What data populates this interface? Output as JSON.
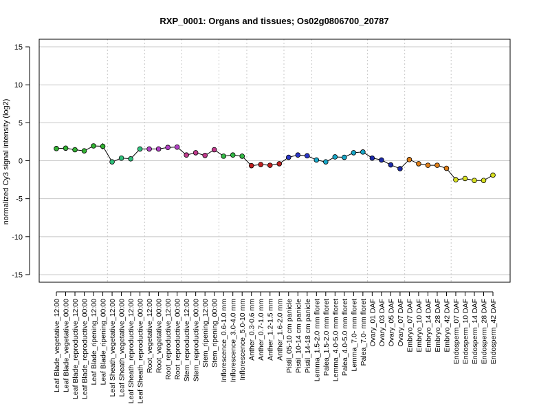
{
  "chart_data": {
    "type": "line",
    "title": "RXP_0001: Organs and tissues; Os02g0806700_20787",
    "xlabel": "",
    "ylabel": "normalized Cy3 signal intensity (log2)",
    "ylim": [
      -16,
      16
    ],
    "yticks": [
      -15,
      -10,
      -5,
      0,
      5,
      10,
      15
    ],
    "grid": true,
    "categories": [
      "Leaf Blade_vegetative_12:00",
      "Leaf Blade_vegetative_00:00",
      "Leaf Blade_reproductive_12:00",
      "Leaf Blade_reproductive_00:00",
      "Leaf Blade_ripening_12:00",
      "Leaf Blade_ripening_00:00",
      "Leaf Sheath_vegetative_12:00",
      "Leaf Sheath_vegetative_00:00",
      "Leaf Sheath_reproductive_12:00",
      "Leaf Sheath_reproductive_00:00",
      "Root_vegetative_12:00",
      "Root_vegetative_00:00",
      "Root_reproductive_12:00",
      "Root_reproductive_00:00",
      "Stem_reproductive_12:00",
      "Stem_reproductive_00:00",
      "Stem_ripening_12:00",
      "Stem_ripening_00:00",
      "Inflorescence_0.6-1.0 mm",
      "Inflorescence_3.0-4.0 mm",
      "Inflorescence_5.0-10 mm",
      "Anther_0.3-0.6 mm",
      "Anther_0.7-1.0 mm",
      "Anther_1.2-1.5 mm",
      "Anther_1.6-2.0 mm",
      "Pistil_05-10 cm panicle",
      "Pistil_10-14 cm panicle",
      "Pistil_14-18 cm panicle",
      "Lemma_1.5-2.0 mm floret",
      "Palea_1.5-2.0 mm floret",
      "Lemma_4.0-5.0 mm floret",
      "Palea_4.0-5.0 mm floret",
      "Lemma_7.0- mm floret",
      "Palea_7.0- mm floret",
      "Ovary_01 DAF",
      "Ovary_03 DAF",
      "Ovary_05 DAF",
      "Ovary_07 DAF",
      "Embryo_07 DAF",
      "Embryo_10 DAF",
      "Embryo_14 DAF",
      "Embryo_28 DAF",
      "Embryo_42 DAF",
      "Endosperm_07 DAF",
      "Endosperm_10 DAF",
      "Endosperm_14 DAF",
      "Endosperm_28 DAF",
      "Endosperm_42 DAF"
    ],
    "values": [
      1.6,
      1.65,
      1.45,
      1.3,
      1.95,
      1.9,
      -0.15,
      0.35,
      0.25,
      1.55,
      1.55,
      1.55,
      1.75,
      1.8,
      0.75,
      1.05,
      0.7,
      1.45,
      0.6,
      0.75,
      0.6,
      -0.65,
      -0.5,
      -0.6,
      -0.4,
      0.45,
      0.75,
      0.65,
      0.1,
      -0.15,
      0.5,
      0.45,
      1.05,
      1.15,
      0.35,
      0.1,
      -0.55,
      -1.05,
      0.15,
      -0.4,
      -0.6,
      -0.6,
      -1.0,
      -2.5,
      -2.35,
      -2.6,
      -2.6,
      -1.9
    ],
    "errors": [
      0.15,
      0.15,
      0.2,
      0.15,
      0.2,
      0.4,
      0.2,
      0.2,
      0.35,
      0.15,
      0.15,
      0.15,
      0.15,
      0.15,
      0.15,
      0.15,
      0.15,
      0.2,
      0.15,
      0.15,
      0.35,
      0.15,
      0.15,
      0.2,
      0.2,
      0.15,
      0.3,
      0.2,
      0.15,
      0.15,
      0.3,
      0.25,
      0.2,
      0.3,
      0.2,
      0.15,
      0.15,
      0.3,
      0.2,
      0.15,
      0.15,
      0.15,
      0.15,
      0.15,
      0.15,
      0.15,
      0.15,
      0.15
    ],
    "group_separators_after": [
      5,
      9,
      13,
      17,
      20,
      24,
      27,
      33,
      37,
      42
    ],
    "point_colors": [
      "#33b233",
      "#33b233",
      "#33b233",
      "#33b233",
      "#33b233",
      "#33b233",
      "#2ebf7a",
      "#2ebf7a",
      "#2ebf7a",
      "#2ebf7a",
      "#b23fc4",
      "#b23fc4",
      "#b23fc4",
      "#b23fc4",
      "#c03a8c",
      "#c03a8c",
      "#c03a8c",
      "#c03a8c",
      "#33b845",
      "#33b845",
      "#33b845",
      "#c02020",
      "#c02020",
      "#c02020",
      "#c02020",
      "#2a36c8",
      "#2a36c8",
      "#2a36c8",
      "#18a7c8",
      "#18a7c8",
      "#18a7c8",
      "#18a7c8",
      "#18a7c8",
      "#18a7c8",
      "#1c2aa8",
      "#1c2aa8",
      "#1c2aa8",
      "#1c2aa8",
      "#e0801a",
      "#e0801a",
      "#e0801a",
      "#e0801a",
      "#e0801a",
      "#d8e020",
      "#d8e020",
      "#d8e020",
      "#d8e020",
      "#d8e020"
    ],
    "line_color": "#000000",
    "gridline_color": "#c8c8c8"
  }
}
